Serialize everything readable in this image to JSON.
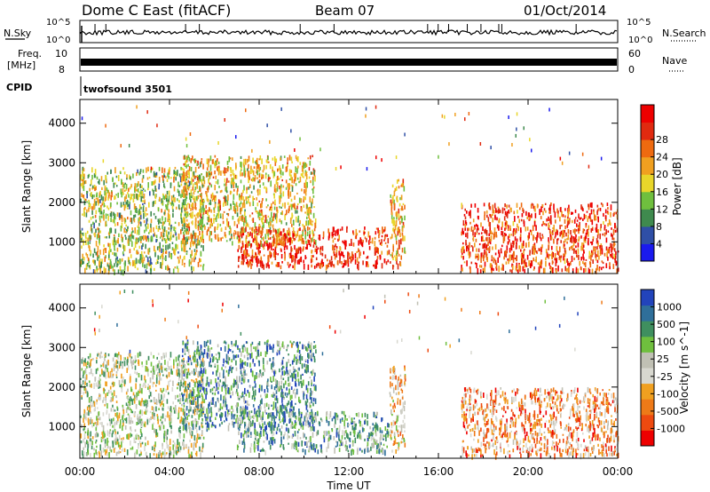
{
  "header": {
    "station": "Dome C East (fitACF)",
    "beam": "Beam 07",
    "date": "01/Oct/2014"
  },
  "top_panels": {
    "nsky_label": "N.Sky",
    "nsky_hi": "10^5",
    "nsky_lo": "10^0",
    "nsearch_label": "N.Search",
    "nsearch_hi": "10^5",
    "nsearch_lo": "10^0",
    "freq_label": "Freq.",
    "freq_unit": "[MHz]",
    "freq_tick_hi": "10",
    "freq_tick_lo": "8",
    "nave_label": "Nave",
    "nave_tick_hi": "60",
    "nave_tick_lo": "0",
    "cpid_label": "CPID",
    "cpid_value": "twofsound 3501"
  },
  "colors": {
    "power": [
      "#1a1aee",
      "#2f4fa6",
      "#3f8a4e",
      "#6fbf3e",
      "#e8d62a",
      "#f0a020",
      "#ee6a10",
      "#e02a10",
      "#ee0000"
    ],
    "velocity": [
      "#2244bb",
      "#2f6f9a",
      "#3f8f5f",
      "#6fbf3e",
      "#c0c0b4",
      "#d8d8d0",
      "#f0a020",
      "#ee7a18",
      "#ee4a10",
      "#ee0000"
    ]
  },
  "chart_data": [
    {
      "type": "heatmap",
      "title": "Power",
      "ylabel": "Slant Range [km]",
      "xlabel": "",
      "x_ticks": [
        "00:00",
        "04:00",
        "08:00",
        "12:00",
        "16:00",
        "20:00",
        "00:00"
      ],
      "xlim": [
        0,
        24
      ],
      "y_ticks": [
        "1000",
        "2000",
        "3000",
        "4000"
      ],
      "ylim": [
        200,
        4600
      ],
      "colorbar_label": "Power [dB]",
      "colorbar_ticks": [
        "4",
        "8",
        "12",
        "16",
        "20",
        "24",
        "28"
      ],
      "colorbar_range": [
        0,
        30
      ],
      "echo_regions": [
        {
          "t0": 0.0,
          "t1": 5.5,
          "r0": 300,
          "r1": 2900,
          "level": 0.45
        },
        {
          "t0": 4.5,
          "t1": 10.5,
          "r0": 1000,
          "r1": 3200,
          "level": 0.55
        },
        {
          "t0": 7.0,
          "t1": 13.8,
          "r0": 400,
          "r1": 1400,
          "level": 0.85
        },
        {
          "t0": 13.8,
          "t1": 14.5,
          "r0": 400,
          "r1": 2600,
          "level": 0.6
        },
        {
          "t0": 17.0,
          "t1": 24.0,
          "r0": 300,
          "r1": 2000,
          "level": 0.8
        }
      ]
    },
    {
      "type": "heatmap",
      "title": "Velocity",
      "ylabel": "Slant Range [km]",
      "xlabel": "Time UT",
      "x_ticks": [
        "00:00",
        "04:00",
        "08:00",
        "12:00",
        "16:00",
        "20:00",
        "00:00"
      ],
      "xlim": [
        0,
        24
      ],
      "y_ticks": [
        "1000",
        "2000",
        "3000",
        "4000"
      ],
      "ylim": [
        200,
        4600
      ],
      "colorbar_label": "Velocity [m s^-1]",
      "colorbar_ticks": [
        "1000",
        "500",
        "100",
        "25",
        "-25",
        "-100",
        "-500",
        "-1000"
      ],
      "echo_regions": [
        {
          "t0": 0.0,
          "t1": 5.5,
          "r0": 300,
          "r1": 2900,
          "level": 0.55
        },
        {
          "t0": 4.5,
          "t1": 10.5,
          "r0": 1000,
          "r1": 3200,
          "level": 0.75
        },
        {
          "t0": 7.0,
          "t1": 13.8,
          "r0": 400,
          "r1": 1400,
          "level": 0.7
        },
        {
          "t0": 13.8,
          "t1": 14.5,
          "r0": 400,
          "r1": 2600,
          "level": 0.4
        },
        {
          "t0": 17.0,
          "t1": 24.0,
          "r0": 300,
          "r1": 2000,
          "level": 0.3
        }
      ]
    }
  ]
}
